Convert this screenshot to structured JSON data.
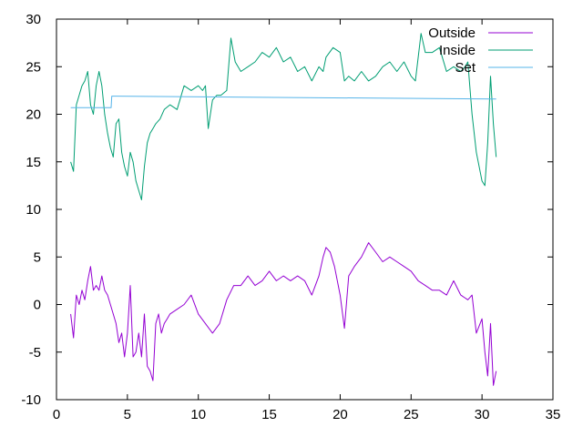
{
  "chart_data": {
    "type": "line",
    "title": "",
    "xlabel": "",
    "ylabel": "",
    "xlim": [
      0,
      35
    ],
    "ylim": [
      -10,
      30
    ],
    "xticks": [
      0,
      5,
      10,
      15,
      20,
      25,
      30,
      35
    ],
    "yticks": [
      -10,
      -5,
      0,
      5,
      10,
      15,
      20,
      25,
      30
    ],
    "grid": false,
    "legend_position": "top-right",
    "series": [
      {
        "name": "Outside",
        "color": "#9400d3",
        "x": [
          1.0,
          1.2,
          1.4,
          1.6,
          1.8,
          2.0,
          2.2,
          2.4,
          2.6,
          2.8,
          3.0,
          3.2,
          3.4,
          3.6,
          3.8,
          4.0,
          4.2,
          4.4,
          4.6,
          4.8,
          5.0,
          5.2,
          5.4,
          5.6,
          5.8,
          6.0,
          6.2,
          6.4,
          6.6,
          6.8,
          7.0,
          7.2,
          7.4,
          7.6,
          7.8,
          8.0,
          8.5,
          9.0,
          9.5,
          10.0,
          10.5,
          11.0,
          11.5,
          12.0,
          12.5,
          13.0,
          13.5,
          14.0,
          14.5,
          15.0,
          15.5,
          16.0,
          16.5,
          17.0,
          17.5,
          18.0,
          18.5,
          18.8,
          19.0,
          19.3,
          19.6,
          20.0,
          20.3,
          20.6,
          21.0,
          21.5,
          22.0,
          22.5,
          23.0,
          23.5,
          24.0,
          24.5,
          25.0,
          25.5,
          26.0,
          26.5,
          27.0,
          27.5,
          28.0,
          28.5,
          29.0,
          29.3,
          29.6,
          30.0,
          30.2,
          30.4,
          30.6,
          30.8,
          31.0
        ],
        "y": [
          -1.0,
          -3.5,
          1.0,
          0.0,
          1.5,
          0.5,
          2.5,
          4.0,
          1.5,
          2.0,
          1.5,
          3.0,
          1.5,
          1.0,
          0.0,
          -1.0,
          -2.0,
          -4.0,
          -3.0,
          -5.5,
          -3.0,
          2.0,
          -5.5,
          -5.0,
          -3.0,
          -5.5,
          -1.0,
          -6.5,
          -7.0,
          -8.0,
          -2.0,
          -1.0,
          -3.0,
          -2.0,
          -1.5,
          -1.0,
          -0.5,
          0.0,
          1.0,
          -1.0,
          -2.0,
          -3.0,
          -2.0,
          0.5,
          2.0,
          2.0,
          3.0,
          2.0,
          2.5,
          3.5,
          2.5,
          3.0,
          2.5,
          3.0,
          2.5,
          1.0,
          3.0,
          5.0,
          6.0,
          5.5,
          4.0,
          1.0,
          -2.5,
          3.0,
          4.0,
          5.0,
          6.5,
          5.5,
          4.5,
          5.0,
          4.5,
          4.0,
          3.5,
          2.5,
          2.0,
          1.5,
          1.5,
          1.0,
          2.5,
          1.0,
          0.5,
          1.0,
          -3.0,
          -1.5,
          -5.0,
          -7.5,
          -2.0,
          -8.5,
          -7.0
        ]
      },
      {
        "name": "Inside",
        "color": "#009e73",
        "x": [
          1.0,
          1.2,
          1.4,
          1.6,
          1.8,
          2.0,
          2.2,
          2.4,
          2.6,
          2.8,
          3.0,
          3.2,
          3.4,
          3.6,
          3.8,
          4.0,
          4.2,
          4.4,
          4.6,
          4.8,
          5.0,
          5.2,
          5.4,
          5.6,
          5.8,
          6.0,
          6.2,
          6.4,
          6.6,
          6.8,
          7.0,
          7.3,
          7.6,
          8.0,
          8.5,
          9.0,
          9.5,
          10.0,
          10.3,
          10.5,
          10.7,
          11.0,
          11.3,
          11.6,
          12.0,
          12.3,
          12.6,
          13.0,
          13.5,
          14.0,
          14.5,
          15.0,
          15.5,
          16.0,
          16.5,
          17.0,
          17.5,
          18.0,
          18.5,
          18.8,
          19.0,
          19.5,
          20.0,
          20.3,
          20.6,
          21.0,
          21.5,
          22.0,
          22.5,
          23.0,
          23.5,
          24.0,
          24.5,
          25.0,
          25.3,
          25.5,
          25.7,
          26.0,
          26.5,
          27.0,
          27.5,
          28.0,
          28.5,
          28.8,
          29.0,
          29.3,
          29.6,
          30.0,
          30.2,
          30.4,
          30.6,
          30.8,
          31.0
        ],
        "y": [
          15.0,
          14.0,
          21.0,
          22.0,
          23.0,
          23.5,
          24.5,
          21.0,
          20.0,
          23.0,
          24.5,
          23.0,
          20.0,
          18.0,
          16.5,
          15.5,
          19.0,
          19.5,
          16.0,
          14.5,
          13.5,
          16.0,
          15.0,
          13.0,
          12.0,
          11.0,
          14.5,
          17.0,
          18.0,
          18.5,
          19.0,
          19.5,
          20.5,
          21.0,
          20.5,
          23.0,
          22.5,
          23.0,
          22.5,
          23.0,
          18.5,
          21.5,
          22.0,
          22.0,
          22.5,
          28.0,
          25.5,
          24.5,
          25.0,
          25.5,
          26.5,
          26.0,
          27.0,
          25.5,
          26.0,
          24.5,
          25.0,
          23.5,
          25.0,
          24.5,
          26.0,
          27.0,
          26.5,
          23.5,
          24.0,
          23.5,
          24.5,
          23.5,
          24.0,
          25.0,
          25.5,
          24.5,
          25.5,
          24.0,
          23.5,
          26.0,
          28.5,
          26.5,
          26.5,
          27.0,
          24.5,
          25.0,
          24.5,
          25.0,
          25.5,
          20.0,
          16.0,
          13.0,
          12.5,
          17.0,
          24.0,
          19.0,
          15.5
        ]
      },
      {
        "name": "Set",
        "color": "#56b4e9",
        "x": [
          1.0,
          3.85,
          3.9,
          31.0
        ],
        "y": [
          20.7,
          20.7,
          21.9,
          21.6
        ]
      }
    ]
  }
}
